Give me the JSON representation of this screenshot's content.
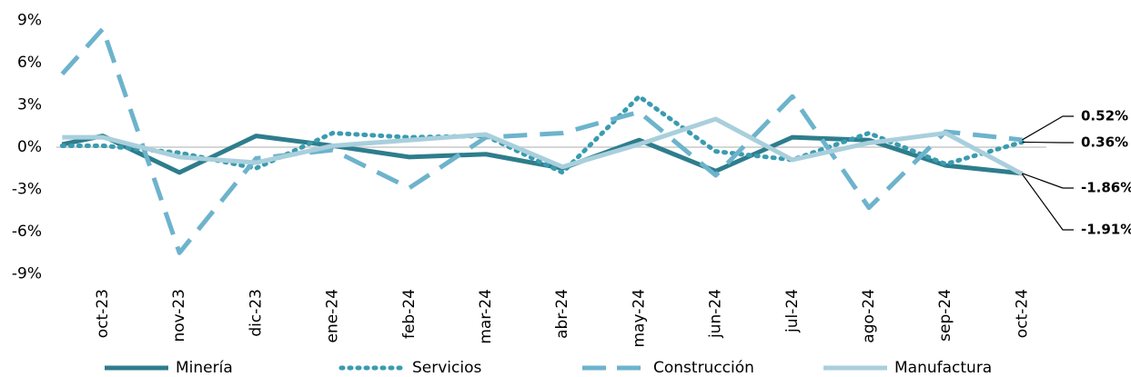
{
  "chart_data": {
    "type": "line",
    "categories": [
      null,
      "oct-23",
      "nov-23",
      "dic-23",
      "ene-24",
      "feb-24",
      "mar-24",
      "abr-24",
      "may-24",
      "jun-24",
      "jul-24",
      "ago-24",
      "sep-24",
      "oct-24"
    ],
    "series": [
      {
        "name": "Minería",
        "color": "#2e7d8c",
        "style": "solid",
        "values": [
          0.2,
          0.8,
          -1.8,
          0.8,
          0.1,
          -0.7,
          -0.5,
          -1.5,
          0.5,
          -1.7,
          0.7,
          0.5,
          -1.3,
          -1.86
        ],
        "value_labels": [
          null,
          null,
          null,
          null,
          null,
          null,
          null,
          null,
          null,
          null,
          null,
          null,
          null,
          "-1.86%"
        ]
      },
      {
        "name": "Servicios",
        "color": "#3a9bb0",
        "style": "dotted",
        "values": [
          0.1,
          0.1,
          -0.4,
          -1.5,
          1.0,
          0.7,
          0.8,
          -1.8,
          3.6,
          -0.3,
          -0.9,
          1.0,
          -1.2,
          0.36
        ],
        "value_labels": [
          null,
          null,
          null,
          null,
          null,
          null,
          null,
          null,
          null,
          null,
          null,
          null,
          null,
          "0.36%"
        ]
      },
      {
        "name": "Construcción",
        "color": "#6db3cc",
        "style": "dashed",
        "values": [
          5.2,
          8.4,
          -7.5,
          -0.8,
          -0.2,
          -2.9,
          0.7,
          1.0,
          2.5,
          -2.0,
          3.6,
          -4.3,
          1.1,
          0.52
        ],
        "value_labels": [
          null,
          null,
          null,
          null,
          null,
          null,
          null,
          null,
          null,
          null,
          null,
          null,
          null,
          "0.52%"
        ]
      },
      {
        "name": "Manufactura",
        "color": "#a9cfdc",
        "style": "solid",
        "values": [
          0.7,
          0.7,
          -0.7,
          -1.1,
          0.1,
          0.5,
          0.9,
          -1.4,
          0.2,
          2.0,
          -0.9,
          0.3,
          1.0,
          -1.91
        ],
        "value_labels": [
          null,
          null,
          null,
          null,
          null,
          null,
          null,
          null,
          null,
          null,
          null,
          null,
          null,
          "-1.91%"
        ]
      }
    ],
    "ylim": [
      -9,
      9
    ],
    "yticks": [
      {
        "value": 9,
        "label": "9%"
      },
      {
        "value": 6,
        "label": "6%"
      },
      {
        "value": 3,
        "label": "3%"
      },
      {
        "value": 0,
        "label": "0%"
      },
      {
        "value": -3,
        "label": "-3%"
      },
      {
        "value": -6,
        "label": "-6%"
      },
      {
        "value": -9,
        "label": "-9%"
      }
    ],
    "zero_line": true
  }
}
